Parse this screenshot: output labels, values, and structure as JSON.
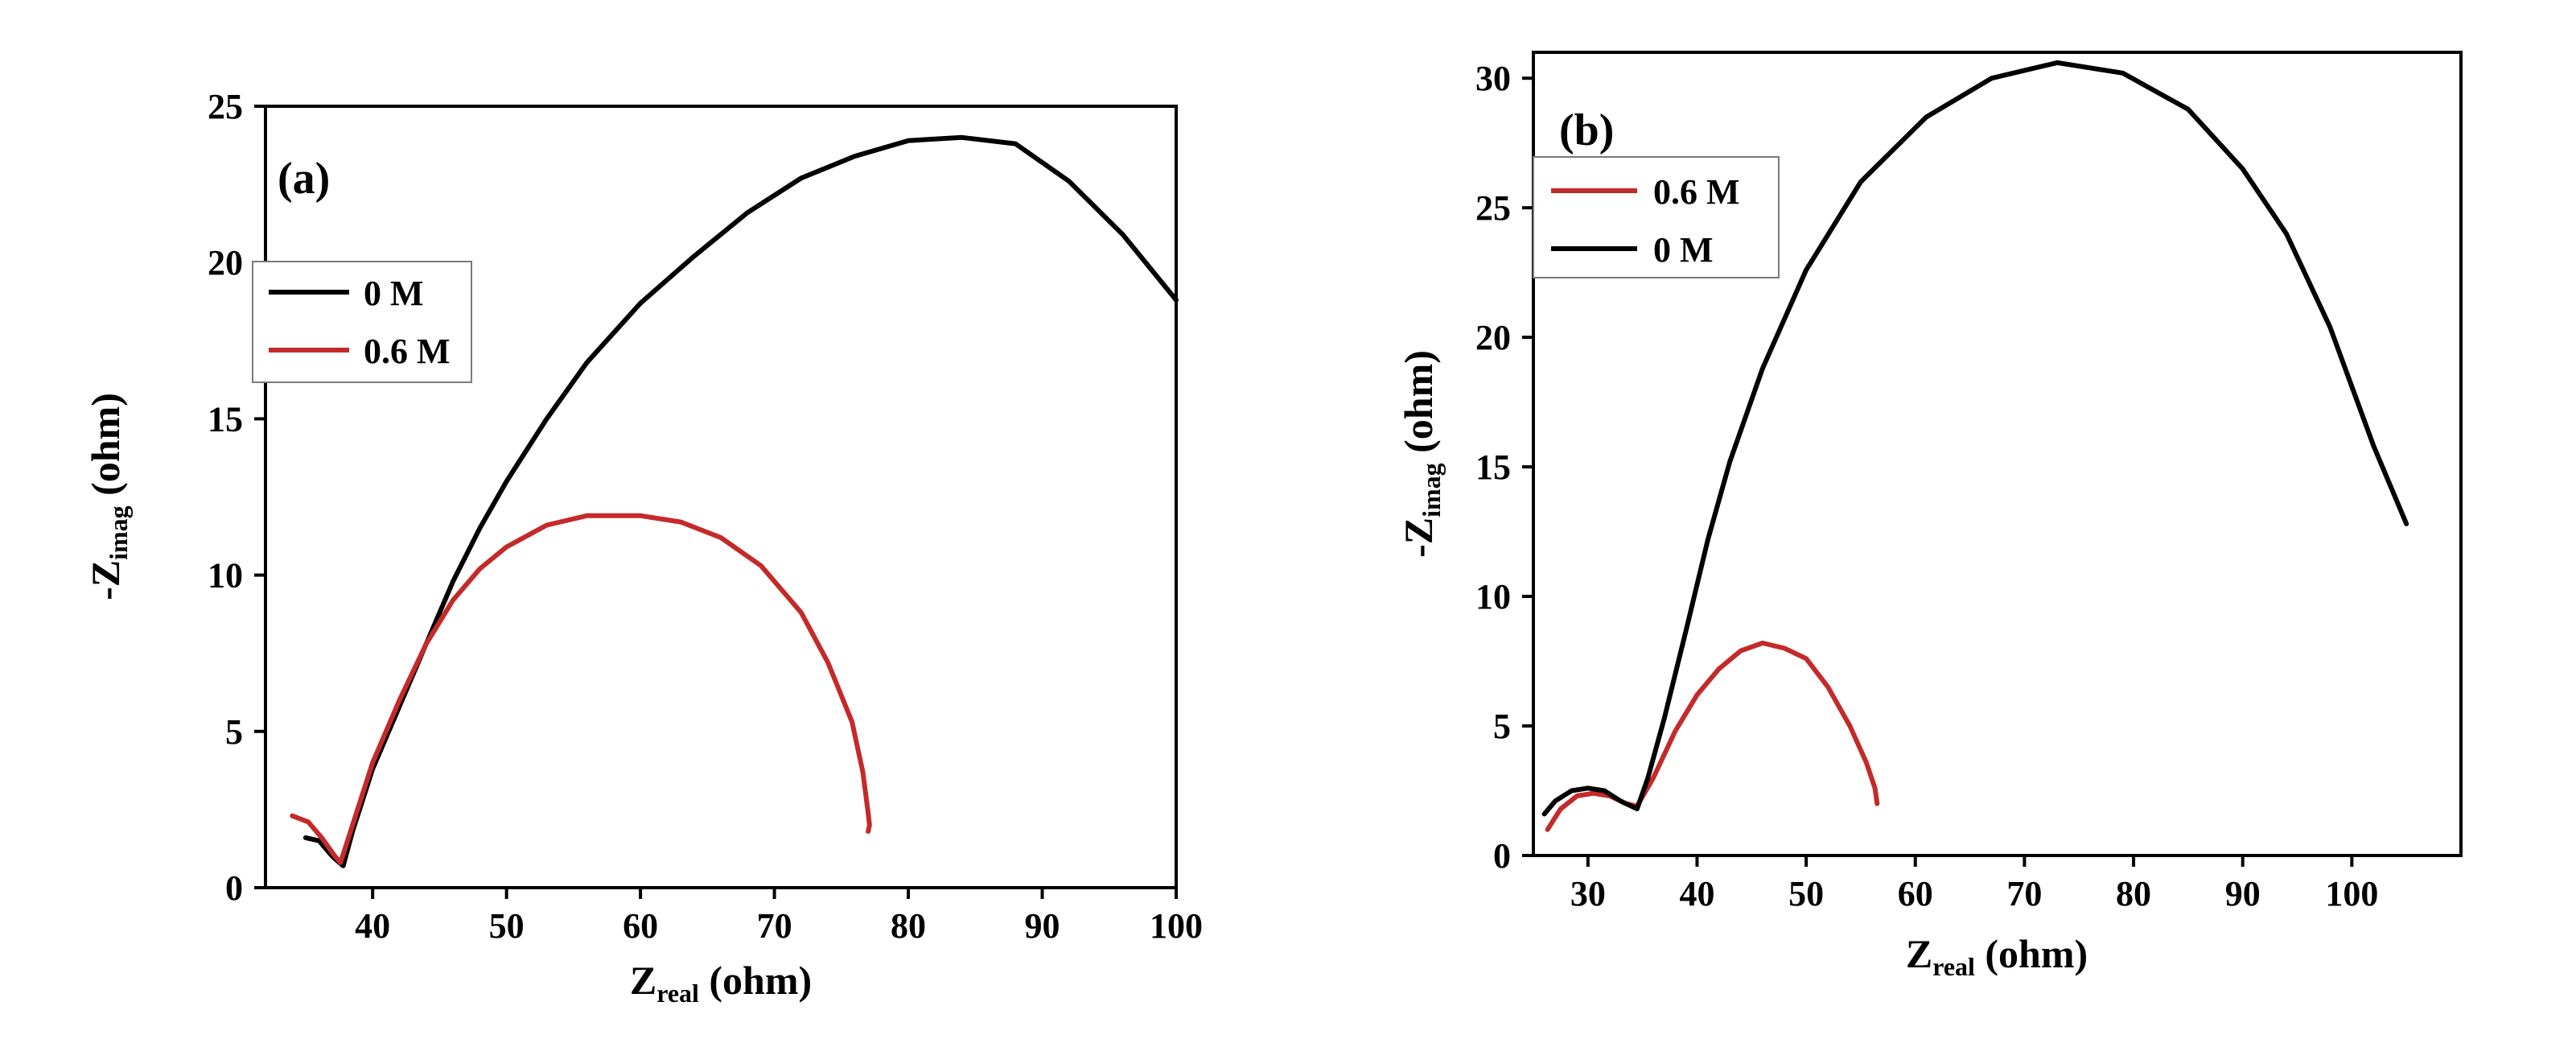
{
  "chart_data": [
    {
      "type": "line",
      "panel_label": "(a)",
      "xlabel": {
        "main": "Z",
        "sub": "real",
        "unit": " (ohm)"
      },
      "ylabel": {
        "prefix": "-Z",
        "sub": "imag",
        "unit": " (ohm)"
      },
      "xlim": [
        32,
        100
      ],
      "ylim": [
        0,
        25
      ],
      "xticks": [
        "40",
        "50",
        "60",
        "70",
        "80",
        "90",
        "100"
      ],
      "xtick_values": [
        40,
        50,
        60,
        70,
        80,
        90,
        100
      ],
      "yticks": [
        "0",
        "5",
        "10",
        "15",
        "20",
        "25"
      ],
      "ytick_values": [
        0,
        5,
        10,
        15,
        20,
        25
      ],
      "legend_position": "upper-left",
      "series": [
        {
          "name": "0 M",
          "color": "#000000",
          "x": [
            35,
            36,
            37,
            37.8,
            38.5,
            40,
            42,
            44,
            46,
            48,
            50,
            53,
            56,
            60,
            64,
            68,
            72,
            76,
            80,
            84,
            88,
            92,
            96,
            100
          ],
          "y": [
            1.6,
            1.5,
            1.0,
            0.7,
            1.8,
            3.8,
            5.8,
            7.8,
            9.8,
            11.5,
            13.0,
            15.0,
            16.8,
            18.7,
            20.2,
            21.6,
            22.7,
            23.4,
            23.9,
            24.0,
            23.8,
            22.6,
            20.9,
            18.8
          ]
        },
        {
          "name": "0.6 M",
          "color": "#c42a2a",
          "x": [
            34,
            35.2,
            36.2,
            37.2,
            37.6,
            38.5,
            40,
            42,
            44,
            46,
            48,
            50,
            53,
            56,
            60,
            63,
            66,
            69,
            72,
            74,
            75.8,
            76.6,
            77,
            77.1,
            77
          ],
          "y": [
            2.3,
            2.1,
            1.6,
            1.0,
            0.8,
            2.0,
            4.0,
            6.0,
            7.8,
            9.2,
            10.2,
            10.9,
            11.6,
            11.9,
            11.9,
            11.7,
            11.2,
            10.3,
            8.8,
            7.2,
            5.3,
            3.7,
            2.4,
            2.0,
            1.8
          ]
        }
      ]
    },
    {
      "type": "line",
      "panel_label": "(b)",
      "xlabel": {
        "main": "Z",
        "sub": "real",
        "unit": " (ohm)"
      },
      "ylabel": {
        "prefix": "-Z",
        "sub": "imag",
        "unit": " (ohm)"
      },
      "xlim": [
        25,
        110
      ],
      "ylim": [
        0,
        31
      ],
      "xticks": [
        "30",
        "40",
        "50",
        "60",
        "70",
        "80",
        "90",
        "100"
      ],
      "xtick_values": [
        30,
        40,
        50,
        60,
        70,
        80,
        90,
        100
      ],
      "yticks": [
        "0",
        "5",
        "10",
        "15",
        "20",
        "25",
        "30"
      ],
      "ytick_values": [
        0,
        5,
        10,
        15,
        20,
        25,
        30
      ],
      "legend_position": "upper-left",
      "series": [
        {
          "name": "0.6 M",
          "color": "#c42a2a",
          "x": [
            26.3,
            27.5,
            29,
            30.5,
            32,
            33.5,
            34.5,
            36,
            38,
            40,
            42,
            44,
            46,
            48,
            50,
            52,
            54,
            55.5,
            56.3,
            56.5
          ],
          "y": [
            1.0,
            1.8,
            2.3,
            2.4,
            2.3,
            2.0,
            1.9,
            3.0,
            4.8,
            6.2,
            7.2,
            7.9,
            8.2,
            8.0,
            7.6,
            6.5,
            5.0,
            3.6,
            2.6,
            2.0
          ]
        },
        {
          "name": "0 M",
          "color": "#000000",
          "x": [
            26,
            27,
            28.5,
            30,
            31.5,
            33,
            34.5,
            35.5,
            37,
            39,
            41,
            43,
            46,
            50,
            55,
            61,
            67,
            73,
            79,
            85,
            90,
            94,
            98,
            102,
            105
          ],
          "y": [
            1.6,
            2.1,
            2.5,
            2.6,
            2.5,
            2.1,
            1.8,
            3.0,
            5.3,
            8.7,
            12.2,
            15.2,
            18.8,
            22.6,
            26.0,
            28.5,
            30.0,
            30.6,
            30.2,
            28.8,
            26.5,
            24.0,
            20.4,
            15.8,
            12.8
          ]
        }
      ]
    }
  ]
}
